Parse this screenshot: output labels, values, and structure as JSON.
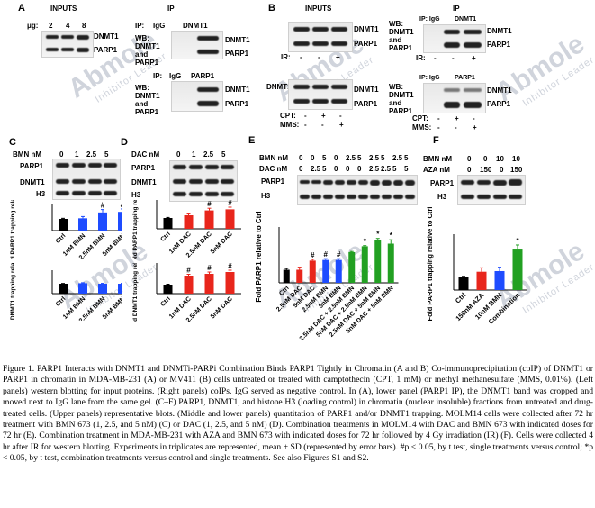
{
  "panels": {
    "A": "A",
    "B": "B",
    "C": "C",
    "D": "D",
    "E": "E",
    "F": "F"
  },
  "panel_a": {
    "inputs_title": "INPUTS",
    "ip_title": "IP",
    "ug_label": "μg:",
    "ug_values": [
      "2",
      "4",
      "8"
    ],
    "dnmt1": "DNMT1",
    "parp1": "PARP1",
    "ip1_label": "IP:",
    "ip1_igg": "IgG",
    "ip1_target": "DNMT1",
    "ip2_label": "IP:",
    "ip2_igg": "IgG",
    "ip2_target": "PARP1",
    "wb_lines": [
      "WB:",
      "DNMT1",
      "and",
      "PARP1"
    ]
  },
  "panel_b": {
    "inputs_title": "INPUTS",
    "ip_title": "IP",
    "dnmt1": "DNMT1",
    "parp1": "PARP1",
    "ir_label": "IR:",
    "ir_values": [
      "-",
      "-",
      "+"
    ],
    "cpt_label": "CPT:",
    "cpt_values": [
      "-",
      "+",
      "-"
    ],
    "mms_label": "MMS:",
    "mms_values": [
      "-",
      "-",
      "+"
    ],
    "ip1": "IP: IgG",
    "ip1_target": "DNMT1",
    "ip2": "IP: IgG",
    "ip2_target": "PARP1",
    "wb_lines": [
      "WB:",
      "DNMT1",
      "and",
      "PARP1"
    ]
  },
  "panel_c": {
    "dose_label": "BMN nM",
    "doses": [
      "0",
      "1",
      "2.5",
      "5"
    ],
    "parp1": "PARP1",
    "dnmt1": "DNMT1",
    "h3": "H3"
  },
  "panel_d": {
    "dose_label": "DAC nM",
    "doses": [
      "0",
      "1",
      "2.5",
      "5"
    ],
    "parp1": "PARP1",
    "dnmt1": "DNMT1",
    "h3": "H3"
  },
  "panel_e": {
    "bmn_label": "BMN nM",
    "bmn_values": [
      "0",
      "0",
      "5",
      "0",
      "2.5",
      "5",
      "2.5",
      "5",
      "2.5",
      "5"
    ],
    "dac_label": "DAC nM",
    "dac_values": [
      "0",
      "2.5",
      "5",
      "0",
      "0",
      "0",
      "2.5",
      "2.5",
      "5",
      "5"
    ],
    "parp1": "PARP1",
    "h3": "H3"
  },
  "panel_f": {
    "bmn_label": "BMN nM",
    "bmn_values": [
      "0",
      "0",
      "10",
      "10"
    ],
    "aza_label": "AZA nM",
    "aza_values": [
      "0",
      "150",
      "0",
      "150"
    ],
    "parp1": "PARP1",
    "h3": "H3"
  },
  "chart_data": [
    {
      "id": "C-top",
      "type": "bar",
      "ylabel": "Fold PARP1 trapping relative to Ctrl",
      "categories": [
        "Ctrl",
        "1nM BMN",
        "2.5nM BMN",
        "5nM BMN"
      ],
      "values": [
        1.0,
        1.05,
        1.55,
        1.6
      ],
      "errors": [
        0.05,
        0.15,
        0.25,
        0.25
      ],
      "colors": [
        "#000000",
        "#1e4cff",
        "#1e4cff",
        "#1e4cff"
      ],
      "annotations": [
        "",
        "",
        "#",
        "#"
      ],
      "ylim": [
        0,
        2
      ]
    },
    {
      "id": "C-bottom",
      "type": "bar",
      "ylabel": "Fold DNMT1 trapping relative to Ctrl",
      "categories": [
        "Ctrl",
        "1nM BMN",
        "2.5nM BMN",
        "5nM BMN"
      ],
      "values": [
        1.0,
        1.05,
        1.0,
        1.0
      ],
      "errors": [
        0.03,
        0.05,
        0.04,
        0.04
      ],
      "colors": [
        "#000000",
        "#1e4cff",
        "#1e4cff",
        "#1e4cff"
      ],
      "annotations": [
        "",
        "",
        "",
        ""
      ],
      "ylim": [
        0,
        2
      ]
    },
    {
      "id": "D-top",
      "type": "bar",
      "ylabel": "Fold PARP1 trapping relative to Ctrl",
      "categories": [
        "Ctrl",
        "1nM DAC",
        "2.5nM DAC",
        "5nM DAC"
      ],
      "values": [
        1.0,
        1.25,
        1.7,
        1.8
      ],
      "errors": [
        0.05,
        0.12,
        0.2,
        0.2
      ],
      "colors": [
        "#000000",
        "#e8261c",
        "#e8261c",
        "#e8261c"
      ],
      "annotations": [
        "",
        "",
        "#",
        "#"
      ],
      "ylim": [
        0,
        2.5
      ]
    },
    {
      "id": "D-bottom",
      "type": "bar",
      "ylabel": "Fold DNMT1 trapping relative to Ctrl",
      "categories": [
        "Ctrl",
        "1nM DAC",
        "2.5nM DAC",
        "5nM DAC"
      ],
      "values": [
        1.0,
        2.0,
        2.2,
        2.4
      ],
      "errors": [
        0.05,
        0.15,
        0.2,
        0.2
      ],
      "colors": [
        "#000000",
        "#e8261c",
        "#e8261c",
        "#e8261c"
      ],
      "annotations": [
        "",
        "#",
        "#",
        "#"
      ],
      "ylim": [
        0,
        3
      ]
    },
    {
      "id": "E",
      "type": "bar",
      "ylabel": "Fold PARP1 relative to Ctrl",
      "categories": [
        "Ctrl",
        "2.5nM DAC",
        "5nM DAC",
        "2.5nM BMN",
        "5nM BMN",
        "2.5nM DAC + 2.5nM BMN",
        "5nM DAC + 2.5nM BMN",
        "2.5nM DAC + 5nM BMN",
        "5nM DAC + 5nM BMN"
      ],
      "values": [
        1.0,
        1.0,
        1.7,
        1.75,
        1.75,
        2.35,
        2.8,
        3.25,
        3.0
      ],
      "errors": [
        0.1,
        0.2,
        0.1,
        0.1,
        0.1,
        0.05,
        0.05,
        0.15,
        0.3
      ],
      "colors": [
        "#000000",
        "#e8261c",
        "#e8261c",
        "#1e4cff",
        "#1e4cff",
        "#22a022",
        "#22a022",
        "#22a022",
        "#22a022"
      ],
      "annotations": [
        "",
        "",
        "#",
        "#",
        "#",
        "",
        "*",
        "*",
        "*"
      ],
      "ylim": [
        0,
        4
      ]
    },
    {
      "id": "F",
      "type": "bar",
      "ylabel": "Fold PARP1 trapping relative to Ctrl",
      "categories": [
        "Ctrl",
        "150nM AZA",
        "10nM BMN",
        "Combination"
      ],
      "values": [
        1.0,
        1.4,
        1.45,
        3.1
      ],
      "errors": [
        0.05,
        0.3,
        0.3,
        0.35
      ],
      "colors": [
        "#000000",
        "#e8261c",
        "#1e4cff",
        "#22a022"
      ],
      "annotations": [
        "",
        "",
        "",
        "*"
      ],
      "ylim": [
        0,
        4
      ]
    }
  ],
  "caption": "Figure 1. PARP1 Interacts with DNMT1 and DNMTi-PARPi Combination Binds PARP1 Tightly in Chromatin (A and B) Co-immunoprecipitation (coIP) of DNMT1 or PARP1 in chromatin in MDA-MB-231 (A) or MV411 (B) cells untreated or treated with camptothecin (CPT, 1 mM) or methyl methanesulfate (MMS, 0.01%). (Left panels) western blotting for input proteins. (Right panels) coIPs. IgG served as negative control. In (A), lower panel (PARP1 IP), the DNMT1 band was cropped and moved next to IgG lane from the same gel. (C–F) PARP1, DNMT1, and histone H3 (loading control) in chromatin (nuclear insoluble) fractions from untreated and drug-treated cells. (Upper panels) representative blots. (Middle and lower panels) quantitation of PARP1 and/or DNMT1 trapping. MOLM14 cells were collected after 72 hr treatment with BMN 673 (1, 2.5, and 5 nM) (C) or DAC (1, 2.5, and 5 nM) (D). Combination treatments in MOLM14 with DAC and BMN 673 with indicated doses for 72 hr (E). Combination treatment in MDA-MB-231 with AZA and BMN 673 with indicated doses for 72 hr followed by 4 Gy irradiation (IR) (F). Cells were collected 4 hr after IR for western blotting. Experiments in triplicates are represented, mean ± SD (represented by error bars). #p < 0.05, by t test, single treatments versus control; *p < 0.05, by t test, combination treatments versus control and single treatments. See also Figures S1 and S2.",
  "watermark": {
    "brand": "Abmole",
    "tagline": "Inhibitor Leader"
  }
}
